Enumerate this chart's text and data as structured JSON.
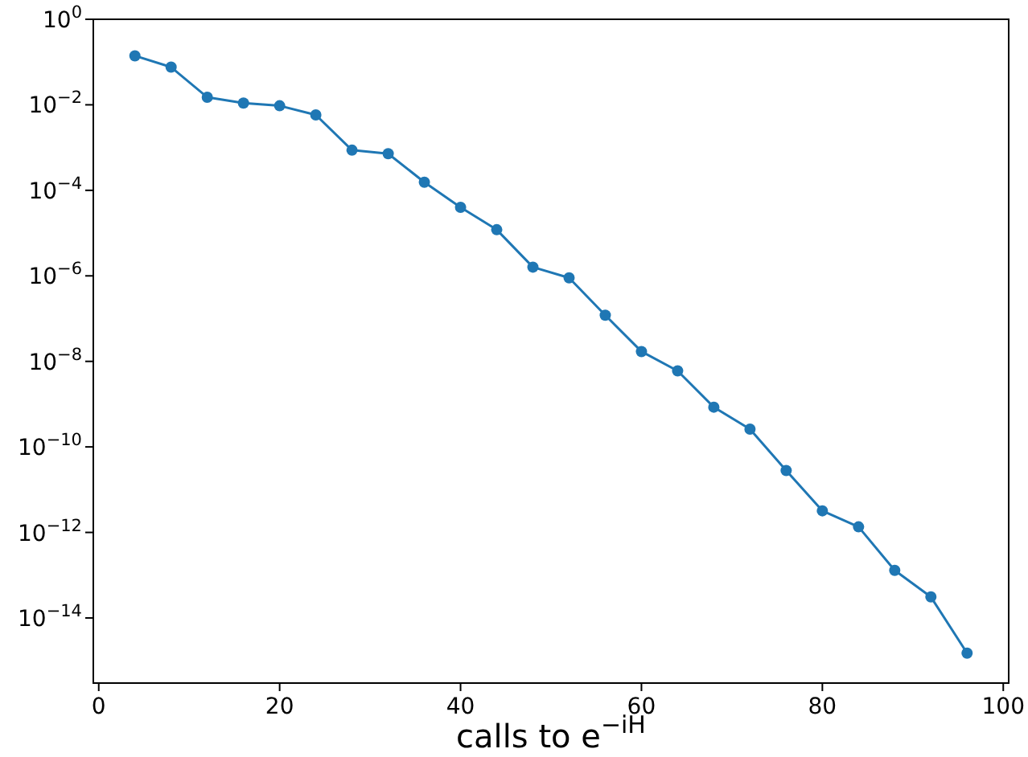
{
  "chart_data": {
    "type": "line",
    "xlabel": "calls to e$^{−iH}$",
    "x": [
      4,
      8,
      12,
      16,
      20,
      24,
      28,
      32,
      36,
      40,
      44,
      48,
      52,
      56,
      60,
      64,
      68,
      72,
      76,
      80,
      84,
      88,
      92,
      96
    ],
    "series": [
      {
        "color": "#1f77b4",
        "values": [
          0.14,
          0.076,
          0.015,
          0.011,
          0.0095,
          0.0058,
          0.00087,
          0.00072,
          0.000155,
          4e-05,
          1.2e-05,
          1.6e-06,
          9e-07,
          1.2e-07,
          1.7e-08,
          6e-09,
          8.5e-10,
          2.6e-10,
          2.8e-11,
          3.2e-12,
          1.35e-12,
          1.3e-13,
          3.1e-14,
          1.5e-15
        ]
      }
    ],
    "log": "y",
    "marker": "circle",
    "line_style": "solid",
    "xlim": [
      -0.6,
      100.6
    ],
    "xticks": [
      0,
      20,
      40,
      60,
      80,
      100
    ],
    "ylim": [
      3e-16,
      1
    ],
    "yticks": [
      {
        "value": 1,
        "label": "10$^{0}$"
      },
      {
        "value": 0.01,
        "label": "10$^{−2}$"
      },
      {
        "value": 0.0001,
        "label": "10$^{−4}$"
      },
      {
        "value": 1e-06,
        "label": "10$^{−6}$"
      },
      {
        "value": 1e-08,
        "label": "10$^{−8}$"
      },
      {
        "value": 1e-10,
        "label": "10$^{−10}$"
      },
      {
        "value": 1e-12,
        "label": "10$^{−12}$"
      },
      {
        "value": 1e-14,
        "label": "10$^{−14}$"
      }
    ]
  }
}
